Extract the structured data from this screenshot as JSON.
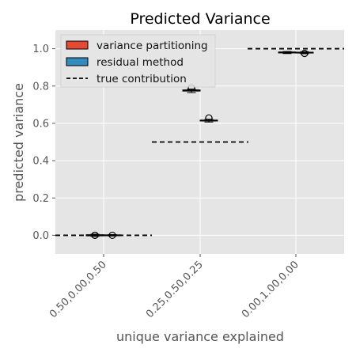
{
  "chart_data": {
    "type": "box",
    "title": "Predicted Variance",
    "xlabel": "unique variance explained",
    "ylabel": "predicted variance",
    "ylim": [
      -0.1,
      1.1
    ],
    "yticks": [
      "0.0",
      "0.2",
      "0.4",
      "0.6",
      "0.8",
      "1.0"
    ],
    "categories": [
      "0.50,0.00,0.50",
      "0.25,0.50,0.25",
      "0.00,1.00,0.00"
    ],
    "grid": true,
    "legend_position": "top-left",
    "series": [
      {
        "name": "variance partitioning",
        "color": "#E24A33",
        "boxes": [
          {
            "q1": -0.003,
            "median": 0.0,
            "q3": 0.003,
            "whisker_low": -0.006,
            "whisker_high": 0.006,
            "outliers": [
              0.0,
              0.0
            ]
          },
          {
            "q1": 0.773,
            "median": 0.776,
            "q3": 0.779,
            "whisker_low": 0.765,
            "whisker_high": 0.784,
            "outliers": [
              0.79
            ]
          },
          {
            "q1": 0.978,
            "median": 0.98,
            "q3": 0.982,
            "whisker_low": 0.974,
            "whisker_high": 0.985,
            "outliers": []
          }
        ]
      },
      {
        "name": "residual method",
        "color": "#348ABD",
        "boxes": [
          {
            "q1": -0.002,
            "median": 0.0,
            "q3": 0.002,
            "whisker_low": -0.004,
            "whisker_high": 0.004,
            "outliers": [
              0.0
            ]
          },
          {
            "q1": 0.613,
            "median": 0.615,
            "q3": 0.617,
            "whisker_low": 0.607,
            "whisker_high": 0.623,
            "outliers": [
              0.629
            ]
          },
          {
            "q1": 0.977,
            "median": 0.979,
            "q3": 0.981,
            "whisker_low": 0.973,
            "whisker_high": 0.984,
            "outliers": [
              0.975
            ]
          }
        ]
      }
    ],
    "reference": {
      "name": "true contribution",
      "values": [
        0.0,
        0.5,
        1.0
      ]
    }
  }
}
